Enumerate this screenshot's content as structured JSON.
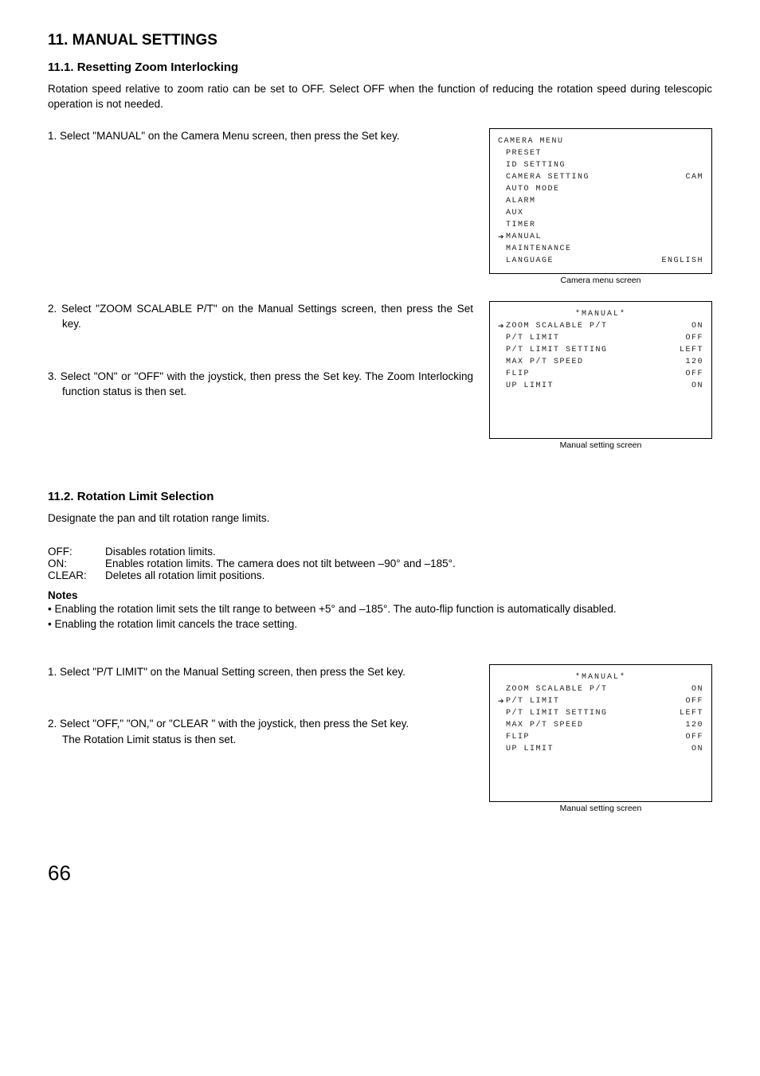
{
  "pageNumber": "66",
  "title": "11. MANUAL SETTINGS",
  "section1": {
    "heading": "11.1. Resetting Zoom Interlocking",
    "intro": "Rotation speed relative to zoom ratio can be set to OFF. Select OFF when the function of reducing the rotation speed during telescopic operation is not needed.",
    "step1a": "1. Select \"MANUAL\" on the Camera Menu screen, then press the",
    "step1b": "Set key.",
    "step2a": "2. Select \"ZOOM SCALABLE P/T\" on the Manual Settings",
    "step2b": "screen, then press the Set key.",
    "step3a": "3. Select \"ON\" or \"OFF\" with the joystick, then press the Set key.",
    "step3b": "The Zoom Interlocking function status is then set."
  },
  "section2": {
    "heading": "11.2. Rotation Limit Selection",
    "intro": "Designate the pan and tilt rotation range limits.",
    "defs": [
      {
        "label": "OFF:",
        "value": "Disables rotation limits."
      },
      {
        "label": "ON:",
        "value": "Enables rotation limits. The camera does not tilt between –90° and –185°."
      },
      {
        "label": "CLEAR:",
        "value": "Deletes all rotation limit positions."
      }
    ],
    "notesHeading": "Notes",
    "note1": "• Enabling the rotation limit sets the tilt range to between +5° and –185°. The auto-flip function is automatically disabled.",
    "note2": "• Enabling the rotation limit cancels the trace setting.",
    "step1a": "1. Select \"P/T LIMIT\" on the Manual Setting screen, then press",
    "step1b": "the Set key.",
    "step2a": "2. Select \"OFF,\" \"ON,\" or \"CLEAR \" with the joystick, then press",
    "step2b": "the Set key.",
    "step2c": "The Rotation Limit status is then set."
  },
  "cameraMenu": {
    "caption": "Camera menu screen",
    "title": "CAMERA MENU",
    "items": [
      {
        "label": "PRESET",
        "value": "",
        "arrow": false
      },
      {
        "label": "ID SETTING",
        "value": "",
        "arrow": false
      },
      {
        "label": "CAMERA SETTING",
        "value": "CAM",
        "arrow": false
      },
      {
        "label": "AUTO MODE",
        "value": "",
        "arrow": false
      },
      {
        "label": "ALARM",
        "value": "",
        "arrow": false
      },
      {
        "label": "AUX",
        "value": "",
        "arrow": false
      },
      {
        "label": "TIMER",
        "value": "",
        "arrow": false
      },
      {
        "label": "MANUAL",
        "value": "",
        "arrow": true
      },
      {
        "label": "MAINTENANCE",
        "value": "",
        "arrow": false
      },
      {
        "label": "LANGUAGE",
        "value": "ENGLISH",
        "arrow": false
      }
    ]
  },
  "manualScreen1": {
    "caption": "Manual setting screen",
    "title": "*MANUAL*",
    "items": [
      {
        "label": "ZOOM SCALABLE P/T",
        "value": "ON",
        "arrow": true
      },
      {
        "label": "P/T LIMIT",
        "value": "OFF",
        "arrow": false
      },
      {
        "label": "P/T LIMIT SETTING",
        "value": "LEFT",
        "arrow": false
      },
      {
        "label": "MAX P/T SPEED",
        "value": "120",
        "arrow": false
      },
      {
        "label": "FLIP",
        "value": "OFF",
        "arrow": false
      },
      {
        "label": "UP LIMIT",
        "value": "ON",
        "arrow": false
      }
    ]
  },
  "manualScreen2": {
    "caption": "Manual setting screen",
    "title": "*MANUAL*",
    "items": [
      {
        "label": "ZOOM SCALABLE P/T",
        "value": "ON",
        "arrow": false
      },
      {
        "label": "P/T LIMIT",
        "value": "OFF",
        "arrow": true
      },
      {
        "label": "P/T LIMIT SETTING",
        "value": "LEFT",
        "arrow": false
      },
      {
        "label": "MAX P/T SPEED",
        "value": "120",
        "arrow": false
      },
      {
        "label": "FLIP",
        "value": "OFF",
        "arrow": false
      },
      {
        "label": "UP LIMIT",
        "value": "ON",
        "arrow": false
      }
    ]
  }
}
